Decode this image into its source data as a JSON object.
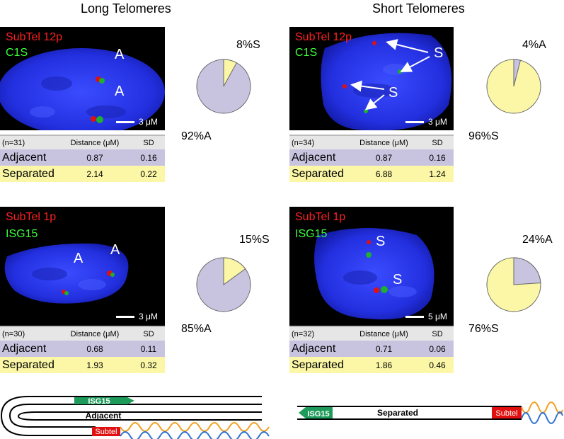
{
  "columns": [
    {
      "title": "Long Telomeres"
    },
    {
      "title": "Short Telomeres"
    }
  ],
  "panels": [
    {
      "id": "long-12p",
      "channel_red": "SubTel 12p",
      "channel_green": "C1S",
      "annotations": [
        "A",
        "A"
      ],
      "scale": "3 μM",
      "pie": {
        "minor_label": "8%S",
        "major_label": "92%A",
        "minor_percent": 8,
        "minor_color": "#fbf7a6",
        "major_color": "#c8c4e0"
      },
      "table": {
        "n": "(n=31)",
        "col_distance": "Distance (μM)",
        "col_sd": "SD",
        "rows": [
          {
            "label": "Adjacent",
            "distance": "0.87",
            "sd": "0.16"
          },
          {
            "label": "Separated",
            "distance": "2.14",
            "sd": "0.22"
          }
        ]
      }
    },
    {
      "id": "short-12p",
      "channel_red": "SubTel 12p",
      "channel_green": "C1S",
      "annotations": [
        "S",
        "S"
      ],
      "scale": "3 μM",
      "pie": {
        "minor_label": "4%A",
        "major_label": "96%S",
        "minor_percent": 4,
        "minor_color": "#c8c4e0",
        "major_color": "#fbf7a6"
      },
      "table": {
        "n": "(n=34)",
        "col_distance": "Distance (μM)",
        "col_sd": "SD",
        "rows": [
          {
            "label": "Adjacent",
            "distance": "0.87",
            "sd": "0.16"
          },
          {
            "label": "Separated",
            "distance": "6.88",
            "sd": "1.24"
          }
        ]
      }
    },
    {
      "id": "long-1p",
      "channel_red": "SubTel 1p",
      "channel_green": "ISG15",
      "annotations": [
        "A",
        "A"
      ],
      "scale": "3 μM",
      "pie": {
        "minor_label": "15%S",
        "major_label": "85%A",
        "minor_percent": 15,
        "minor_color": "#fbf7a6",
        "major_color": "#c8c4e0"
      },
      "table": {
        "n": "(n=30)",
        "col_distance": "Distance (μM)",
        "col_sd": "SD",
        "rows": [
          {
            "label": "Adjacent",
            "distance": "0.68",
            "sd": "0.11"
          },
          {
            "label": "Separated",
            "distance": "1.93",
            "sd": "0.32"
          }
        ]
      }
    },
    {
      "id": "short-1p",
      "channel_red": "SubTel 1p",
      "channel_green": "ISG15",
      "annotations": [
        "S",
        "S"
      ],
      "scale": "5 μM",
      "pie": {
        "minor_label": "24%A",
        "major_label": "76%S",
        "minor_percent": 24,
        "minor_color": "#c8c4e0",
        "major_color": "#fbf7a6"
      },
      "table": {
        "n": "(n=32)",
        "col_distance": "Distance (μM)",
        "col_sd": "SD",
        "rows": [
          {
            "label": "Adjacent",
            "distance": "0.71",
            "sd": "0.06"
          },
          {
            "label": "Separated",
            "distance": "1.86",
            "sd": "0.46"
          }
        ]
      }
    }
  ],
  "diagrams": {
    "left": {
      "gene": "ISG15",
      "state": "Adjacent",
      "subtel": "Subtel"
    },
    "right": {
      "gene": "ISG15",
      "state": "Separated",
      "subtel": "Subtel"
    }
  },
  "colors": {
    "gene": "#1e9a5a",
    "subtel": "#e01010",
    "nucleus": "#2330e0",
    "adjacent": "#c8c4e0",
    "separated": "#fbf7a6"
  }
}
